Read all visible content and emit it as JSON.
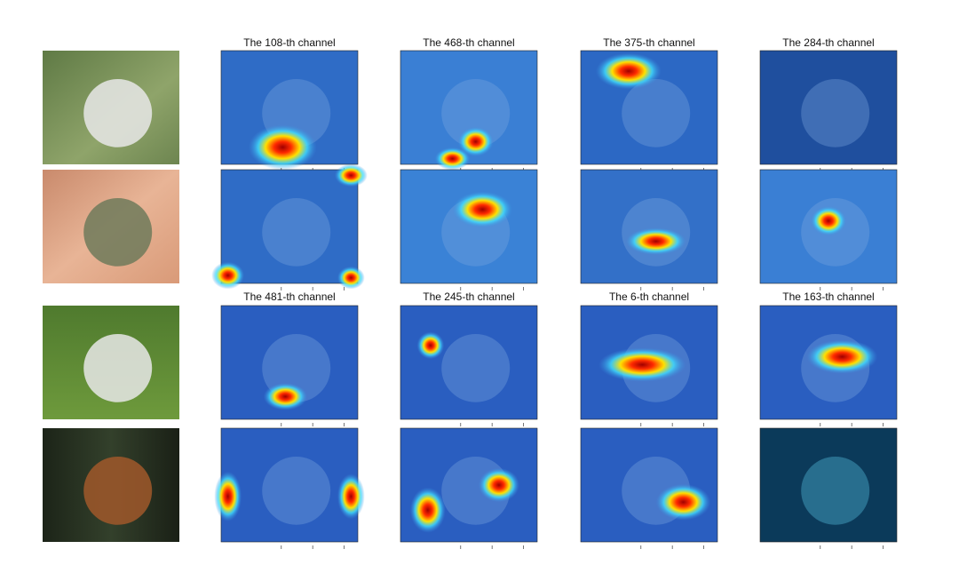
{
  "figure": {
    "groups": [
      {
        "titles": [
          "The 108-th channel",
          "The 468-th channel",
          "The 375-th channel",
          "The 284-th channel"
        ]
      },
      {
        "titles": [
          "The 481-th channel",
          "The 245-th channel",
          "The 6-th channel",
          "The 163-th channel"
        ]
      }
    ]
  }
}
